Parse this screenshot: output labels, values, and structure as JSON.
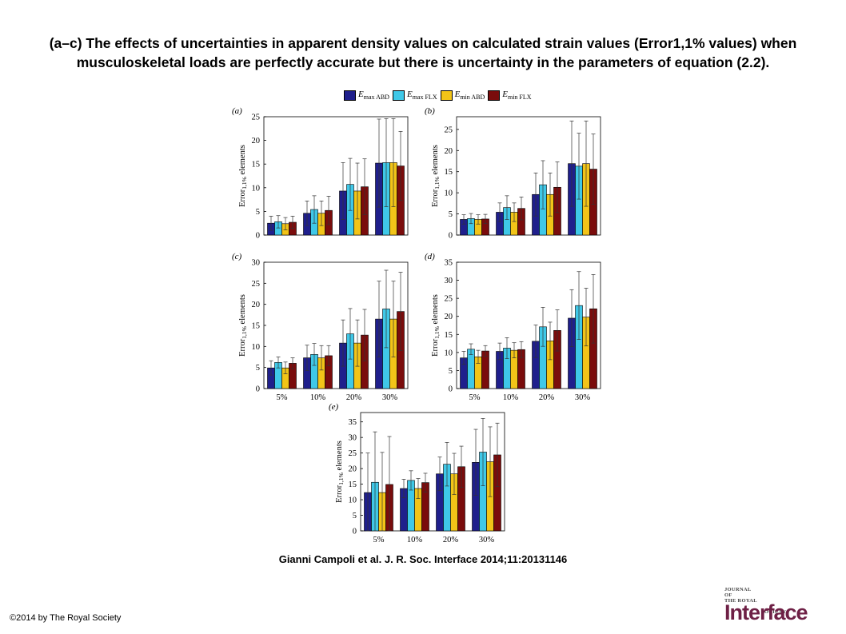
{
  "title": "(a–c) The effects of uncertainties in apparent density values on calculated strain values (Error1,1% values) when musculoskeletal loads are perfectly accurate but there is uncertainty in the parameters of equation (2.2).",
  "citation": "Gianni Campoli et al. J. R. Soc. Interface 2014;11:20131146",
  "copyright": "©2014 by The Royal Society",
  "logo": {
    "top_line_1": "JOURNAL",
    "top_line_2": "OF",
    "top_line_3": "THE ROYAL",
    "top_line_4": "SOCIETY",
    "main": "Interface"
  },
  "legend": [
    {
      "symbol": "E",
      "sub": "max ABD",
      "color": "#1f1f8c"
    },
    {
      "symbol": "E",
      "sub": "max FLX",
      "color": "#3fc8e8"
    },
    {
      "symbol": "E",
      "sub": "min ABD",
      "color": "#f2c418"
    },
    {
      "symbol": "E",
      "sub": "min FLX",
      "color": "#7a0c0c"
    }
  ],
  "chart_data": [
    {
      "panel": "(a)",
      "type": "bar",
      "ylabel": "Error",
      "ylabel_sub": "1,1%",
      "ylabel_rest": " elements",
      "categories": [
        "5%",
        "10%",
        "20%",
        "30%"
      ],
      "show_xticks": false,
      "ylim": [
        0,
        25
      ],
      "yticks": [
        0,
        5,
        10,
        15,
        20,
        25
      ],
      "series": [
        {
          "name": "E max ABD",
          "values": [
            2.5,
            4.6,
            9.3,
            15.2
          ],
          "err": [
            1.5,
            2.6,
            6.0,
            9.3
          ]
        },
        {
          "name": "E max FLX",
          "values": [
            2.8,
            5.4,
            10.7,
            15.3
          ],
          "err": [
            1.3,
            2.9,
            5.5,
            9.3
          ]
        },
        {
          "name": "E min ABD",
          "values": [
            2.4,
            4.6,
            9.3,
            15.3
          ],
          "err": [
            1.3,
            2.6,
            5.9,
            9.3
          ]
        },
        {
          "name": "E min FLX",
          "values": [
            2.7,
            5.2,
            10.2,
            14.6
          ],
          "err": [
            1.3,
            3.0,
            5.9,
            7.3
          ]
        }
      ]
    },
    {
      "panel": "(b)",
      "type": "bar",
      "ylabel": "Error",
      "ylabel_sub": "1,1%",
      "ylabel_rest": " elements",
      "categories": [
        "5%",
        "10%",
        "20%",
        "30%"
      ],
      "show_xticks": false,
      "ylim": [
        0,
        28
      ],
      "yticks": [
        0,
        5,
        10,
        15,
        20,
        25
      ],
      "series": [
        {
          "name": "E max ABD",
          "values": [
            3.7,
            5.4,
            9.6,
            16.9
          ],
          "err": [
            1.1,
            2.2,
            5.1,
            10.1
          ]
        },
        {
          "name": "E max FLX",
          "values": [
            3.9,
            6.5,
            11.9,
            16.3
          ],
          "err": [
            1.2,
            2.8,
            5.7,
            7.8
          ]
        },
        {
          "name": "E min ABD",
          "values": [
            3.7,
            5.4,
            9.6,
            16.9
          ],
          "err": [
            1.1,
            2.2,
            5.1,
            10.1
          ]
        },
        {
          "name": "E min FLX",
          "values": [
            3.8,
            6.3,
            11.3,
            15.6
          ],
          "err": [
            1.1,
            2.7,
            6.0,
            8.3
          ]
        }
      ]
    },
    {
      "panel": "(c)",
      "type": "bar",
      "ylabel": "Error",
      "ylabel_sub": "1,1%",
      "ylabel_rest": " elements",
      "categories": [
        "5%",
        "10%",
        "20%",
        "30%"
      ],
      "show_xticks": true,
      "ylim": [
        0,
        30
      ],
      "yticks": [
        0,
        5,
        10,
        15,
        20,
        25,
        30
      ],
      "series": [
        {
          "name": "E max ABD",
          "values": [
            4.9,
            7.3,
            10.8,
            16.5
          ],
          "err": [
            1.7,
            3.0,
            5.5,
            9.0
          ]
        },
        {
          "name": "E max FLX",
          "values": [
            6.2,
            8.1,
            13.0,
            18.9
          ],
          "err": [
            1.3,
            2.6,
            6.0,
            9.2
          ]
        },
        {
          "name": "E min ABD",
          "values": [
            4.9,
            7.3,
            10.8,
            16.5
          ],
          "err": [
            1.4,
            2.9,
            5.5,
            9.0
          ]
        },
        {
          "name": "E min FLX",
          "values": [
            6.0,
            7.8,
            12.7,
            18.3
          ],
          "err": [
            1.3,
            2.4,
            6.1,
            9.3
          ]
        }
      ]
    },
    {
      "panel": "(d)",
      "type": "bar",
      "ylabel": "Error",
      "ylabel_sub": "1,1%",
      "ylabel_rest": " elements",
      "categories": [
        "5%",
        "10%",
        "20%",
        "30%"
      ],
      "show_xticks": true,
      "ylim": [
        0,
        35
      ],
      "yticks": [
        0,
        5,
        10,
        15,
        20,
        25,
        30,
        35
      ],
      "series": [
        {
          "name": "E max ABD",
          "values": [
            8.5,
            10.3,
            13.1,
            19.5
          ],
          "err": [
            1.8,
            2.3,
            4.5,
            7.9
          ]
        },
        {
          "name": "E max FLX",
          "values": [
            10.9,
            11.2,
            17.1,
            23.0
          ],
          "err": [
            1.5,
            2.9,
            5.4,
            9.4
          ]
        },
        {
          "name": "E min ABD",
          "values": [
            8.8,
            10.6,
            13.2,
            19.8
          ],
          "err": [
            1.8,
            2.1,
            5.2,
            8.0
          ]
        },
        {
          "name": "E min FLX",
          "values": [
            10.4,
            10.8,
            16.1,
            22.1
          ],
          "err": [
            1.5,
            2.2,
            5.7,
            9.5
          ]
        }
      ]
    },
    {
      "panel": "(e)",
      "type": "bar",
      "ylabel": "Error",
      "ylabel_sub": "1,1%",
      "ylabel_rest": " elements",
      "categories": [
        "5%",
        "10%",
        "20%",
        "30%"
      ],
      "show_xticks": true,
      "ylim": [
        0,
        38
      ],
      "yticks": [
        0,
        5,
        10,
        15,
        20,
        25,
        30,
        35
      ],
      "series": [
        {
          "name": "E max ABD",
          "values": [
            12.3,
            13.6,
            18.3,
            22.0
          ],
          "err": [
            12.7,
            3.0,
            5.4,
            10.6
          ]
        },
        {
          "name": "E max FLX",
          "values": [
            15.6,
            16.2,
            21.4,
            25.3
          ],
          "err": [
            16.2,
            3.1,
            7.0,
            10.8
          ]
        },
        {
          "name": "E min ABD",
          "values": [
            12.3,
            13.6,
            18.3,
            22.2
          ],
          "err": [
            12.9,
            3.2,
            6.6,
            11.2
          ]
        },
        {
          "name": "E min FLX",
          "values": [
            14.9,
            15.5,
            20.6,
            24.4
          ],
          "err": [
            15.4,
            3.0,
            6.6,
            10.2
          ]
        }
      ]
    }
  ]
}
